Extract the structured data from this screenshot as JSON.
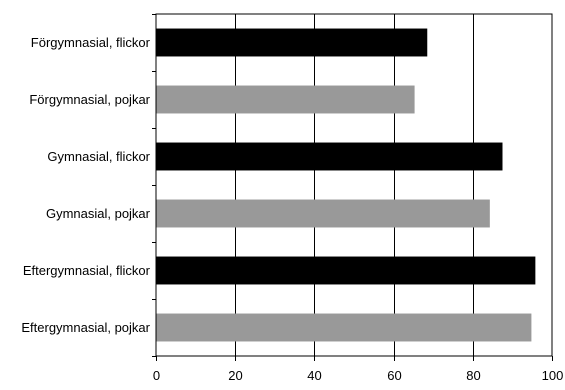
{
  "chart_data": {
    "type": "bar",
    "orientation": "horizontal",
    "categories": [
      "Förgymnasial, flickor",
      "Förgymnasial, pojkar",
      "Gymnasial, flickor",
      "Gymnasial, pojkar",
      "Eftergymnasial, flickor",
      "Eftergymnasial, pojkar"
    ],
    "values": [
      68.5,
      65.3,
      87.5,
      84.3,
      95.8,
      94.8
    ],
    "bar_colors": [
      "#000000",
      "#999999",
      "#000000",
      "#999999",
      "#000000",
      "#999999"
    ],
    "xlim": [
      0,
      100
    ],
    "xticks": [
      0,
      20,
      40,
      60,
      80,
      100
    ],
    "title": "",
    "xlabel": "",
    "ylabel": "",
    "grid": "vertical",
    "legend": "none"
  }
}
